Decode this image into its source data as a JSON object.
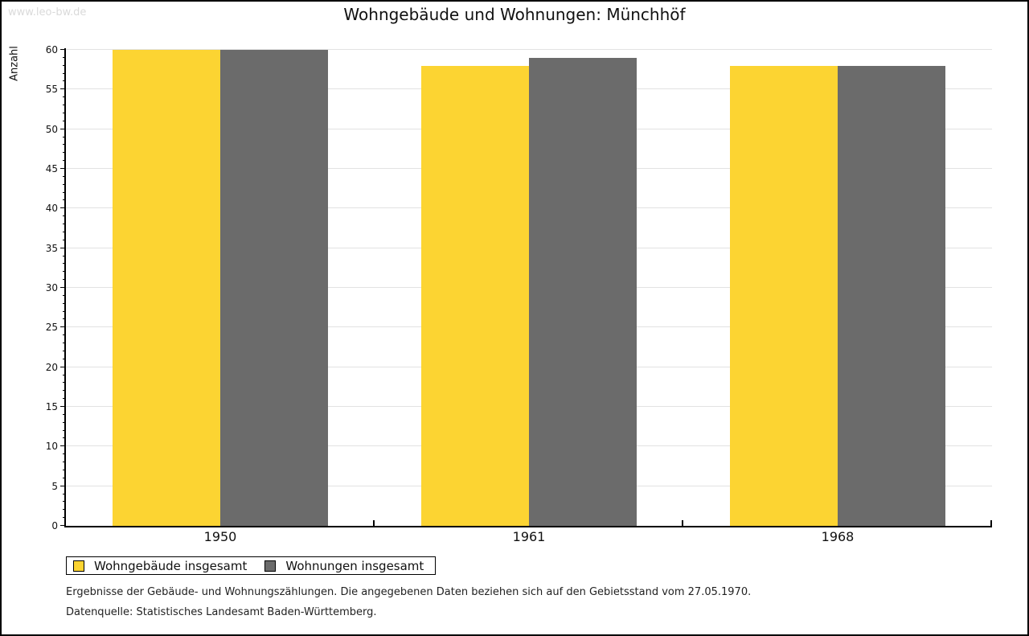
{
  "watermark": "www.leo-bw.de",
  "title": "Wohngebäude und Wohnungen: Münchhöf",
  "chart_data": {
    "type": "bar",
    "title": "Wohngebäude und Wohnungen: Münchhöf",
    "xlabel": "",
    "ylabel": "Anzahl",
    "categories": [
      "1950",
      "1961",
      "1968"
    ],
    "series": [
      {
        "name": "Wohngebäude insgesamt",
        "color": "#FCD432",
        "values": [
          60,
          58,
          58
        ]
      },
      {
        "name": "Wohnungen insgesamt",
        "color": "#6B6B6B",
        "values": [
          60,
          59,
          58
        ]
      }
    ],
    "ylim": [
      0,
      60
    ],
    "y_major_step": 5,
    "y_minor_step": 1,
    "grid": "horizontal-major",
    "legend_position": "bottom-left"
  },
  "legend": {
    "items": [
      {
        "label": "Wohngebäude insgesamt",
        "color": "#FCD432"
      },
      {
        "label": "Wohnungen insgesamt",
        "color": "#6B6B6B"
      }
    ]
  },
  "footer": {
    "line1": "Ergebnisse der Gebäude- und Wohnungszählungen. Die angegebenen Daten beziehen sich auf den Gebietsstand vom 27.05.1970.",
    "line2": "Datenquelle: Statistisches Landesamt Baden-Württemberg."
  }
}
